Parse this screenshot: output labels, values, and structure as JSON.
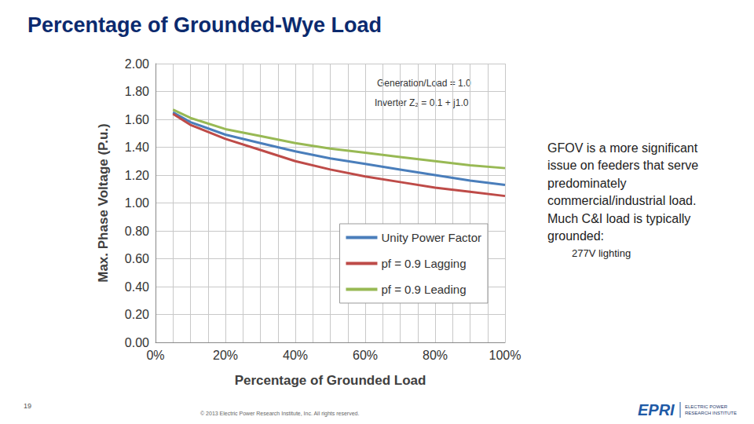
{
  "slide": {
    "title": "Percentage of Grounded-Wye Load",
    "notes": [
      "GFOV is a more significant",
      "issue on feeders that serve",
      "predominately",
      "commercial/industrial load.",
      "Much C&I load is typically",
      "grounded:"
    ],
    "bullet": "277V lighting",
    "page_number": "19",
    "footer": "© 2013 Electric Power Research Institute, Inc. All rights reserved.",
    "logo": {
      "name": "EPRI",
      "full_name": [
        "ELECTRIC POWER",
        "RESEARCH INSTITUTE"
      ]
    }
  },
  "chart_data": {
    "type": "line",
    "x_label": "Percentage of Grounded Load",
    "y_label": "Max. Phase Voltage (P.u.)",
    "annotations": [
      "Generation/Load = 1.0",
      "Inverter Z₂ = 0.1 + j1.0"
    ],
    "x": [
      5,
      10,
      20,
      30,
      40,
      50,
      60,
      70,
      80,
      90,
      100
    ],
    "series": [
      {
        "name": "Unity Power Factor",
        "color": "#4a7ebb",
        "values": [
          1.65,
          1.58,
          1.49,
          1.43,
          1.37,
          1.32,
          1.28,
          1.24,
          1.2,
          1.16,
          1.13
        ]
      },
      {
        "name": "pf = 0.9 Lagging",
        "color": "#be4b48",
        "values": [
          1.64,
          1.56,
          1.46,
          1.38,
          1.3,
          1.24,
          1.19,
          1.15,
          1.11,
          1.08,
          1.05
        ]
      },
      {
        "name": "pf = 0.9 Leading",
        "color": "#98b954",
        "values": [
          1.67,
          1.61,
          1.53,
          1.48,
          1.43,
          1.39,
          1.36,
          1.33,
          1.3,
          1.27,
          1.25
        ]
      }
    ],
    "xlim": [
      0,
      100
    ],
    "xticks": [
      {
        "value": 0,
        "label": "0%"
      },
      {
        "value": 20,
        "label": "20%"
      },
      {
        "value": 40,
        "label": "40%"
      },
      {
        "value": 60,
        "label": "60%"
      },
      {
        "value": 80,
        "label": "80%"
      },
      {
        "value": 100,
        "label": "100%"
      }
    ],
    "ylim": [
      0,
      2
    ],
    "yticks": [
      {
        "value": 0,
        "label": "0.00"
      },
      {
        "value": 0.2,
        "label": "0.20"
      },
      {
        "value": 0.4,
        "label": "0.40"
      },
      {
        "value": 0.6,
        "label": "0.60"
      },
      {
        "value": 0.8,
        "label": "0.80"
      },
      {
        "value": 1,
        "label": "1.00"
      },
      {
        "value": 1.2,
        "label": "1.20"
      },
      {
        "value": 1.4,
        "label": "1.40"
      },
      {
        "value": 1.6,
        "label": "1.60"
      },
      {
        "value": 1.8,
        "label": "1.80"
      },
      {
        "value": 2,
        "label": "2.00"
      }
    ],
    "grid": true,
    "legend": "lower right"
  }
}
